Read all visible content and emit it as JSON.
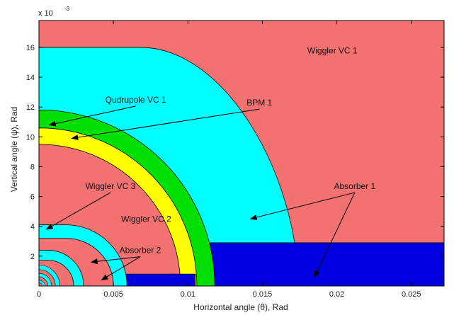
{
  "chart_data": {
    "type": "region-map",
    "xlabel": "Horizontal angle (θ), Rad",
    "ylabel": "Vertical angle (ψ), Rad",
    "y_multiplier": "x 10",
    "y_multiplier_exp": "-3",
    "xlim": [
      0,
      0.0272
    ],
    "ylim": [
      0,
      0.0178
    ],
    "x_ticks": [
      0,
      0.005,
      0.01,
      0.015,
      0.02,
      0.025
    ],
    "x_tick_labels": [
      "0",
      "0.005",
      "0.01",
      "0.015",
      "0.02",
      "0.025"
    ],
    "y_ticks": [
      0.002,
      0.004,
      0.006,
      0.008,
      0.01,
      0.012,
      0.014,
      0.016
    ],
    "y_tick_labels": [
      "2",
      "4",
      "6",
      "8",
      "10",
      "12",
      "14",
      "16"
    ],
    "colors": {
      "wiggler_vc": "#f27272",
      "cyan": "#00ffff",
      "green": "#00e000",
      "yellow": "#ffff00",
      "absorber": "#0000e0"
    },
    "regions": {
      "quadrupole_radius": 0.0118,
      "bpm_outer_radius": 0.0106,
      "bpm_inner_radius": 0.0095,
      "wiggler_vc1_flat_top_end_x": 0.0068,
      "wiggler_vc1_flat_top_y": 0.016,
      "wiggler_vc1_arc_radius": 0.0174,
      "absorber1_x_start": 0.0115,
      "absorber1_height": 0.0029,
      "absorber2_x_end": 0.0105,
      "absorber2_height": 0.0008,
      "small_steps": [
        {
          "flat_end_x": 0.0018,
          "height": 0.0041
        },
        {
          "flat_end_x": 0.0006,
          "height": 0.0024
        }
      ]
    },
    "annotations": [
      {
        "text": "Wiggler VC 1",
        "x": 0.0197,
        "y": 0.0156,
        "arrow_to": []
      },
      {
        "text": "Qudrupole VC 1",
        "x": 0.0065,
        "y": 0.0123,
        "arrow_to": [
          [
            0.0007,
            0.0108
          ]
        ]
      },
      {
        "text": "BPM 1",
        "x": 0.0148,
        "y": 0.0121,
        "arrow_to": [
          [
            0.0022,
            0.0099
          ]
        ]
      },
      {
        "text": "Absorber 1",
        "x": 0.0212,
        "y": 0.0065,
        "arrow_to": [
          [
            0.0142,
            0.0045
          ],
          [
            0.0185,
            0.0006
          ]
        ]
      },
      {
        "text": "Wiggler VC 3",
        "x": 0.0048,
        "y": 0.0065,
        "arrow_to": [
          [
            0.0005,
            0.0038
          ]
        ]
      },
      {
        "text": "Wiggler VC 2",
        "x": 0.0072,
        "y": 0.0043,
        "arrow_to": []
      },
      {
        "text": "Absorber 2",
        "x": 0.0068,
        "y": 0.0022,
        "arrow_to": [
          [
            0.0035,
            0.0016
          ],
          [
            0.0042,
            0.0004
          ]
        ]
      }
    ]
  }
}
